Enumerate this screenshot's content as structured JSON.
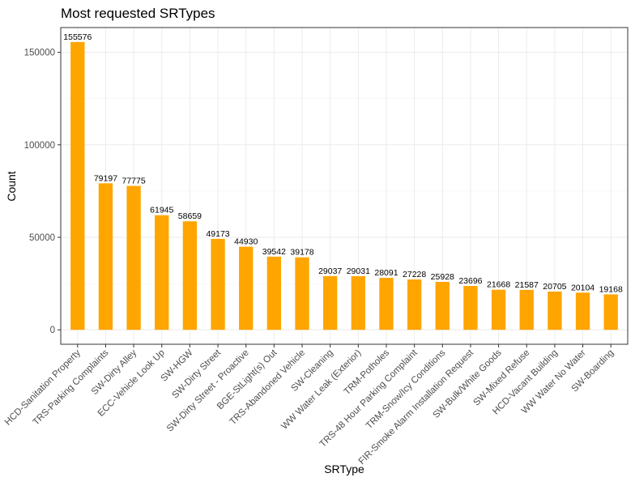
{
  "chart_data": {
    "type": "bar",
    "title": "Most requested SRTypes",
    "xlabel": "SRType",
    "ylabel": "Count",
    "ylim": [
      0,
      162000
    ],
    "yticks": [
      0,
      50000,
      100000,
      150000
    ],
    "grid": true,
    "categories": [
      "HCD-Sanitation Property",
      "TRS-Parking Complaints",
      "SW-Dirty Alley",
      "ECC-Vehicle Look Up",
      "SW-HGW",
      "SW-Dirty Street",
      "SW-Dirty Street - Proactive",
      "BGE-StLight(s) Out",
      "TRS-Abandoned Vehicle",
      "SW-Cleaning",
      "WW Water Leak (Exterior)",
      "TRM-Potholes",
      "TRS-48 Hour Parking Complaint",
      "TRM-Snow/Icy Conditions",
      "FIR-Smoke Alarm Installation Request",
      "SW-Bulk/White Goods",
      "SW-Mixed Refuse",
      "HCD-Vacant Building",
      "WW Water No Water",
      "SW-Boarding"
    ],
    "values": [
      155576,
      79197,
      77775,
      61945,
      58659,
      49173,
      44930,
      39542,
      39178,
      29037,
      29031,
      28091,
      27228,
      25928,
      23696,
      21668,
      21587,
      20705,
      20104,
      19168
    ],
    "bar_color": "#FFA500",
    "data_labels": true
  }
}
